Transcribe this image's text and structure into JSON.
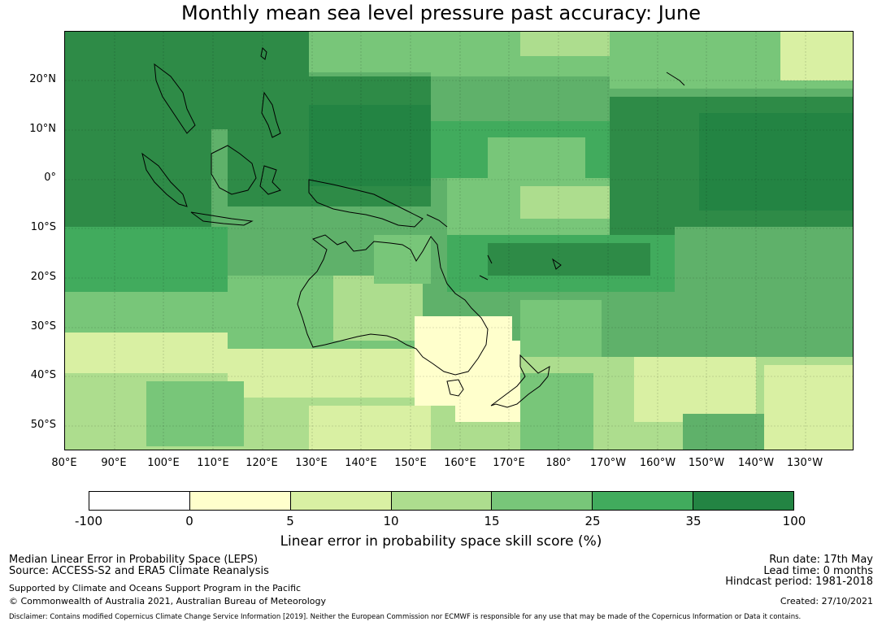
{
  "title": "Monthly mean sea level pressure past accuracy: June",
  "map": {
    "lat_labels": [
      "20°N",
      "10°N",
      "0°",
      "10°S",
      "20°S",
      "30°S",
      "40°S",
      "50°S"
    ],
    "lon_labels": [
      "80°E",
      "90°E",
      "100°E",
      "110°E",
      "120°E",
      "130°E",
      "140°E",
      "150°E",
      "160°E",
      "170°E",
      "180°",
      "170°W",
      "160°W",
      "150°W",
      "140°W",
      "130°W"
    ],
    "extent": {
      "lon_min": 80,
      "lon_max": 240,
      "lat_min": -55.5,
      "lat_max": 29.5
    },
    "land_outline_color": "#000000"
  },
  "colorbar": {
    "ticks": [
      "-100",
      "0",
      "5",
      "10",
      "15",
      "25",
      "35",
      "100"
    ],
    "colors": [
      "#ffffff",
      "#ffffcc",
      "#d9f0a3",
      "#addd8e",
      "#78c679",
      "#41ab5d",
      "#238443"
    ],
    "label": "Linear error in probability space skill score (%)"
  },
  "footer": {
    "left_line1": "Median Linear Error in Probability Space (LEPS)",
    "left_line2": "Source: ACCESS-S2 and ERA5 Climate Reanalysis",
    "left_line3": "Supported by Climate and Oceans Support Program in the Pacific",
    "left_line4": "© Commonwealth of Australia 2021, Australian Bureau of Meteorology",
    "right_line1": "Run date: 17th May",
    "right_line2": "Lead time: 0 months",
    "right_line3": "Hindcast period: 1981-2018",
    "right_line4": "Created: 27/10/2021",
    "disclaimer": "Disclaimer: Contains modified Copernicus Climate Change Service Information [2019]. Neither the European Commission nor ECMWF is responsible for any use that may be made of the Copernicus Information or Data it contains."
  }
}
